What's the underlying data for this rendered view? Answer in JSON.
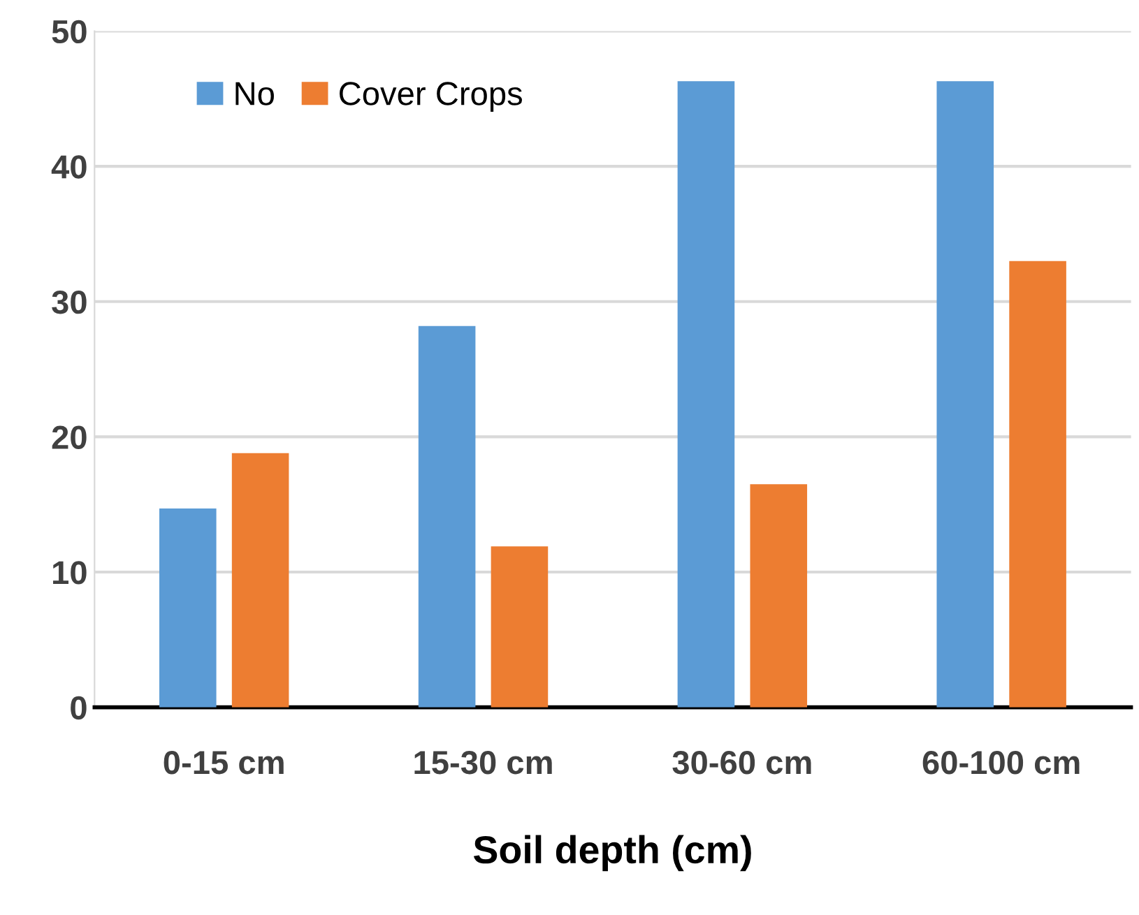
{
  "chart_data": {
    "type": "bar",
    "xlabel": "Soil depth (cm)",
    "categories": [
      "0-15 cm",
      "15-30 cm",
      "30-60 cm",
      "60-100 cm"
    ],
    "series": [
      {
        "name": "No",
        "color": "#5b9bd5",
        "values": [
          14.7,
          28.2,
          46.3,
          46.3
        ]
      },
      {
        "name": "Cover Crops",
        "color": "#ed7d31",
        "values": [
          18.8,
          11.9,
          16.5,
          33.0
        ]
      }
    ],
    "ylim": [
      0,
      50
    ],
    "yticks": [
      0,
      10,
      20,
      30,
      40,
      50
    ],
    "grid": "y",
    "legend": "top left"
  }
}
